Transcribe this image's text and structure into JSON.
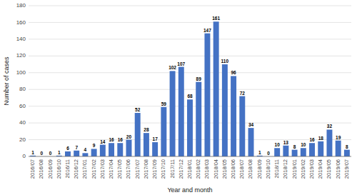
{
  "chart_data": {
    "type": "bar",
    "categories": [
      "2016/07",
      "2016/08",
      "2016/09",
      "2016/10",
      "2016/11",
      "2016/12",
      "2017/01",
      "2017/02",
      "2017/03",
      "2017/04",
      "2017/05",
      "2017/06",
      "2017/07",
      "2017/08",
      "2017/09",
      "2017/10",
      "2017/11",
      "2017/12",
      "2018/01",
      "2018/02",
      "2018/03",
      "2018/04",
      "2018/05",
      "2018/06",
      "2018/07",
      "2018/08",
      "2018/09",
      "2018/10",
      "2018/11",
      "2018/12",
      "2019/01",
      "2019/02",
      "2019/03",
      "2019/04",
      "2019/05",
      "2019/06",
      "2019/07"
    ],
    "values": [
      1,
      0,
      0,
      1,
      6,
      7,
      4,
      9,
      14,
      16,
      16,
      20,
      52,
      28,
      17,
      59,
      102,
      107,
      68,
      89,
      147,
      161,
      110,
      96,
      72,
      34,
      1,
      0,
      10,
      13,
      8,
      10,
      16,
      18,
      32,
      19,
      8
    ],
    "color": "#4472c4",
    "xlabel": "Year and month",
    "ylabel": "Number of cases",
    "ylim": [
      0,
      180
    ],
    "yticks": [
      0,
      20,
      40,
      60,
      80,
      100,
      120,
      140,
      160,
      180
    ],
    "grid": true,
    "data_labels": true
  }
}
